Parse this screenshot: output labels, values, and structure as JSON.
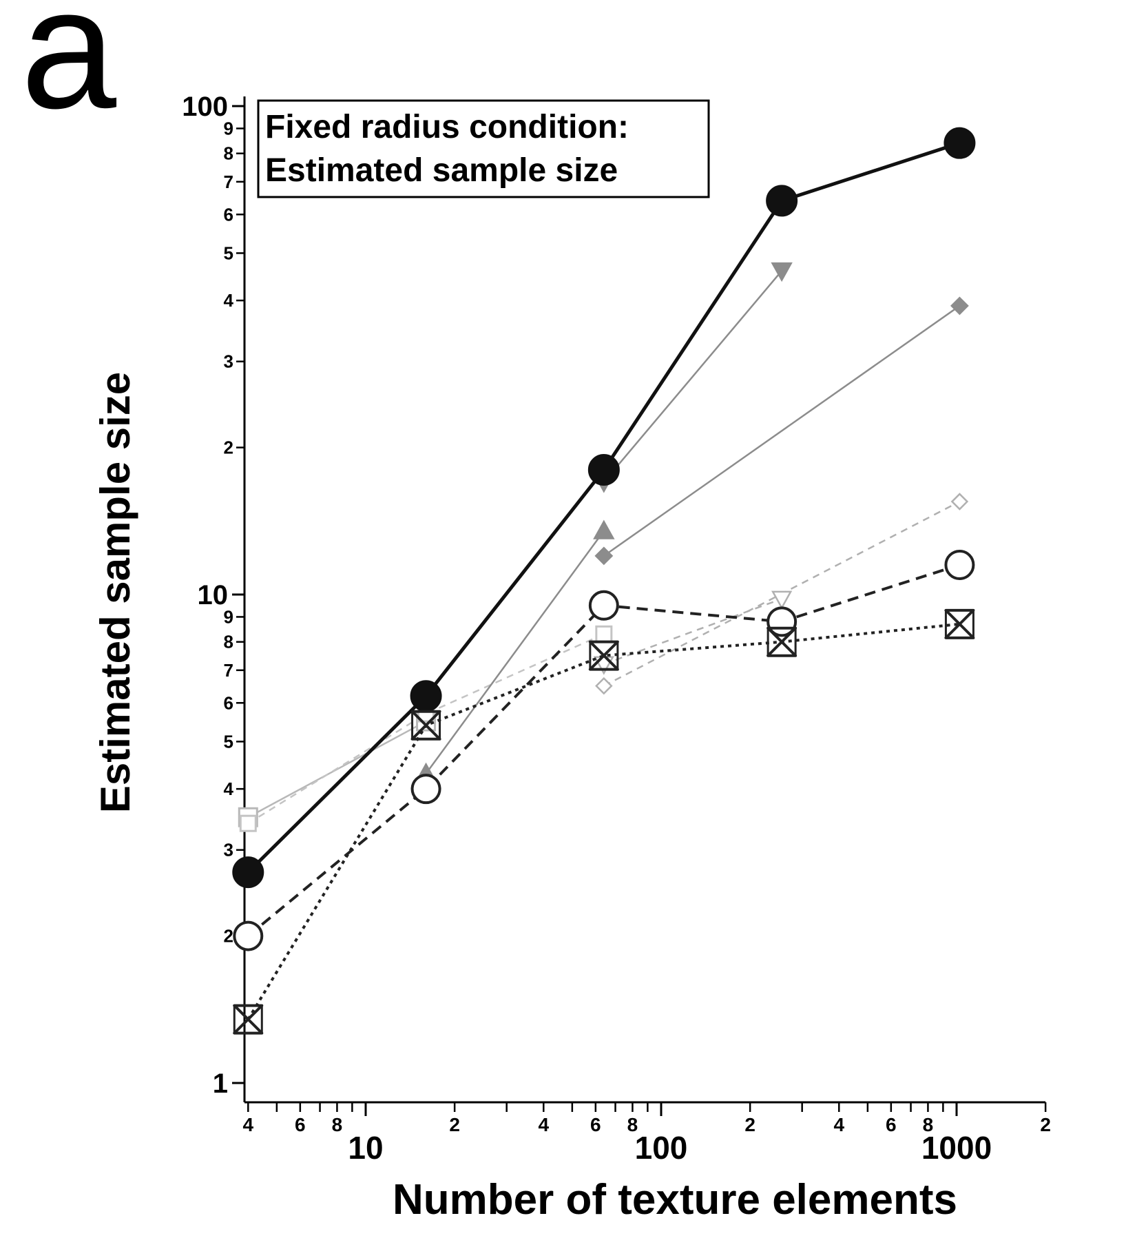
{
  "panel_letter": "a",
  "chart_data": {
    "type": "line",
    "title_lines": [
      "Fixed radius condition:",
      "Estimated sample size"
    ],
    "xlabel": "Number of texture elements",
    "ylabel": "Estimated sample size",
    "x_scale": "log",
    "y_scale": "log",
    "xlim": [
      3.5,
      2000
    ],
    "ylim": [
      0.8,
      100
    ],
    "grid": false,
    "x_major_ticks": [
      {
        "value": 10,
        "label": "10"
      },
      {
        "value": 100,
        "label": "100"
      },
      {
        "value": 1000,
        "label": "1000"
      }
    ],
    "x_minor_ticks": [
      {
        "value": 4,
        "label": "4"
      },
      {
        "value": 5,
        "label": ""
      },
      {
        "value": 6,
        "label": "6"
      },
      {
        "value": 7,
        "label": ""
      },
      {
        "value": 8,
        "label": "8"
      },
      {
        "value": 9,
        "label": ""
      },
      {
        "value": 20,
        "label": "2"
      },
      {
        "value": 30,
        "label": ""
      },
      {
        "value": 40,
        "label": "4"
      },
      {
        "value": 50,
        "label": ""
      },
      {
        "value": 60,
        "label": "6"
      },
      {
        "value": 70,
        "label": ""
      },
      {
        "value": 80,
        "label": "8"
      },
      {
        "value": 90,
        "label": ""
      },
      {
        "value": 200,
        "label": "2"
      },
      {
        "value": 300,
        "label": ""
      },
      {
        "value": 400,
        "label": "4"
      },
      {
        "value": 500,
        "label": ""
      },
      {
        "value": 600,
        "label": "6"
      },
      {
        "value": 700,
        "label": ""
      },
      {
        "value": 800,
        "label": "8"
      },
      {
        "value": 900,
        "label": ""
      },
      {
        "value": 2000,
        "label": "2"
      }
    ],
    "y_major_ticks": [
      {
        "value": 1,
        "label": "1"
      },
      {
        "value": 10,
        "label": "10"
      },
      {
        "value": 100,
        "label": "100"
      }
    ],
    "y_minor_ticks": [
      {
        "value": 2,
        "label": "2"
      },
      {
        "value": 3,
        "label": "3"
      },
      {
        "value": 4,
        "label": "4"
      },
      {
        "value": 5,
        "label": "5"
      },
      {
        "value": 6,
        "label": "6"
      },
      {
        "value": 7,
        "label": "7"
      },
      {
        "value": 8,
        "label": "8"
      },
      {
        "value": 9,
        "label": "9"
      },
      {
        "value": 20,
        "label": "2"
      },
      {
        "value": 30,
        "label": "3"
      },
      {
        "value": 40,
        "label": "4"
      },
      {
        "value": 50,
        "label": "5"
      },
      {
        "value": 60,
        "label": "6"
      },
      {
        "value": 70,
        "label": "7"
      },
      {
        "value": 80,
        "label": "8"
      },
      {
        "value": 90,
        "label": "9"
      }
    ],
    "series": [
      {
        "marker": "square-open",
        "color": "#b8b8b8",
        "dash": "none",
        "width": 2.5,
        "size": 13,
        "x": [
          4,
          16
        ],
        "y": [
          3.5,
          5.5
        ]
      },
      {
        "marker": "square-open",
        "color": "#c4c4c4",
        "dash": "10,8",
        "width": 2.5,
        "size": 11,
        "x": [
          4,
          16,
          64
        ],
        "y": [
          3.4,
          5.7,
          8.3
        ]
      },
      {
        "marker": "triangle-up-filled",
        "color": "#8c8c8c",
        "dash": "none",
        "width": 2.5,
        "size": 14,
        "x": [
          16,
          64
        ],
        "y": [
          4.3,
          13.5
        ]
      },
      {
        "marker": "triangle-down-filled",
        "color": "#8c8c8c",
        "dash": "none",
        "width": 2.5,
        "size": 14,
        "x": [
          64,
          256
        ],
        "y": [
          17,
          46
        ]
      },
      {
        "marker": "diamond-filled",
        "color": "#8c8c8c",
        "dash": "none",
        "width": 2.5,
        "size": 12,
        "x": [
          64,
          1024
        ],
        "y": [
          12,
          39
        ]
      },
      {
        "marker": "diamond-open",
        "color": "#b0b0b0",
        "dash": "10,8",
        "width": 2.5,
        "size": 11,
        "x": [
          64,
          1024
        ],
        "y": [
          6.5,
          15.5
        ]
      },
      {
        "marker": "triangle-down-open",
        "color": "#b0b0b0",
        "dash": "10,8",
        "width": 2.5,
        "size": 13,
        "x": [
          64,
          256
        ],
        "y": [
          7.2,
          9.8
        ]
      },
      {
        "marker": "circle-filled",
        "color": "#111111",
        "dash": "none",
        "width": 5,
        "size": 22,
        "x": [
          4,
          16,
          64,
          256,
          1024
        ],
        "y": [
          2.7,
          6.2,
          18,
          64,
          84
        ]
      },
      {
        "marker": "circle-open",
        "color": "#222222",
        "dash": "16,10",
        "width": 4,
        "size": 20,
        "x": [
          4,
          16,
          64,
          256,
          1024
        ],
        "y": [
          2.0,
          4.0,
          9.5,
          8.8,
          11.5
        ]
      },
      {
        "marker": "hourglass",
        "color": "#222222",
        "dash": "5,6",
        "width": 4,
        "size": 20,
        "x": [
          4,
          16,
          64,
          256,
          1024
        ],
        "y": [
          1.35,
          5.4,
          7.5,
          8.0,
          8.7
        ]
      }
    ]
  }
}
